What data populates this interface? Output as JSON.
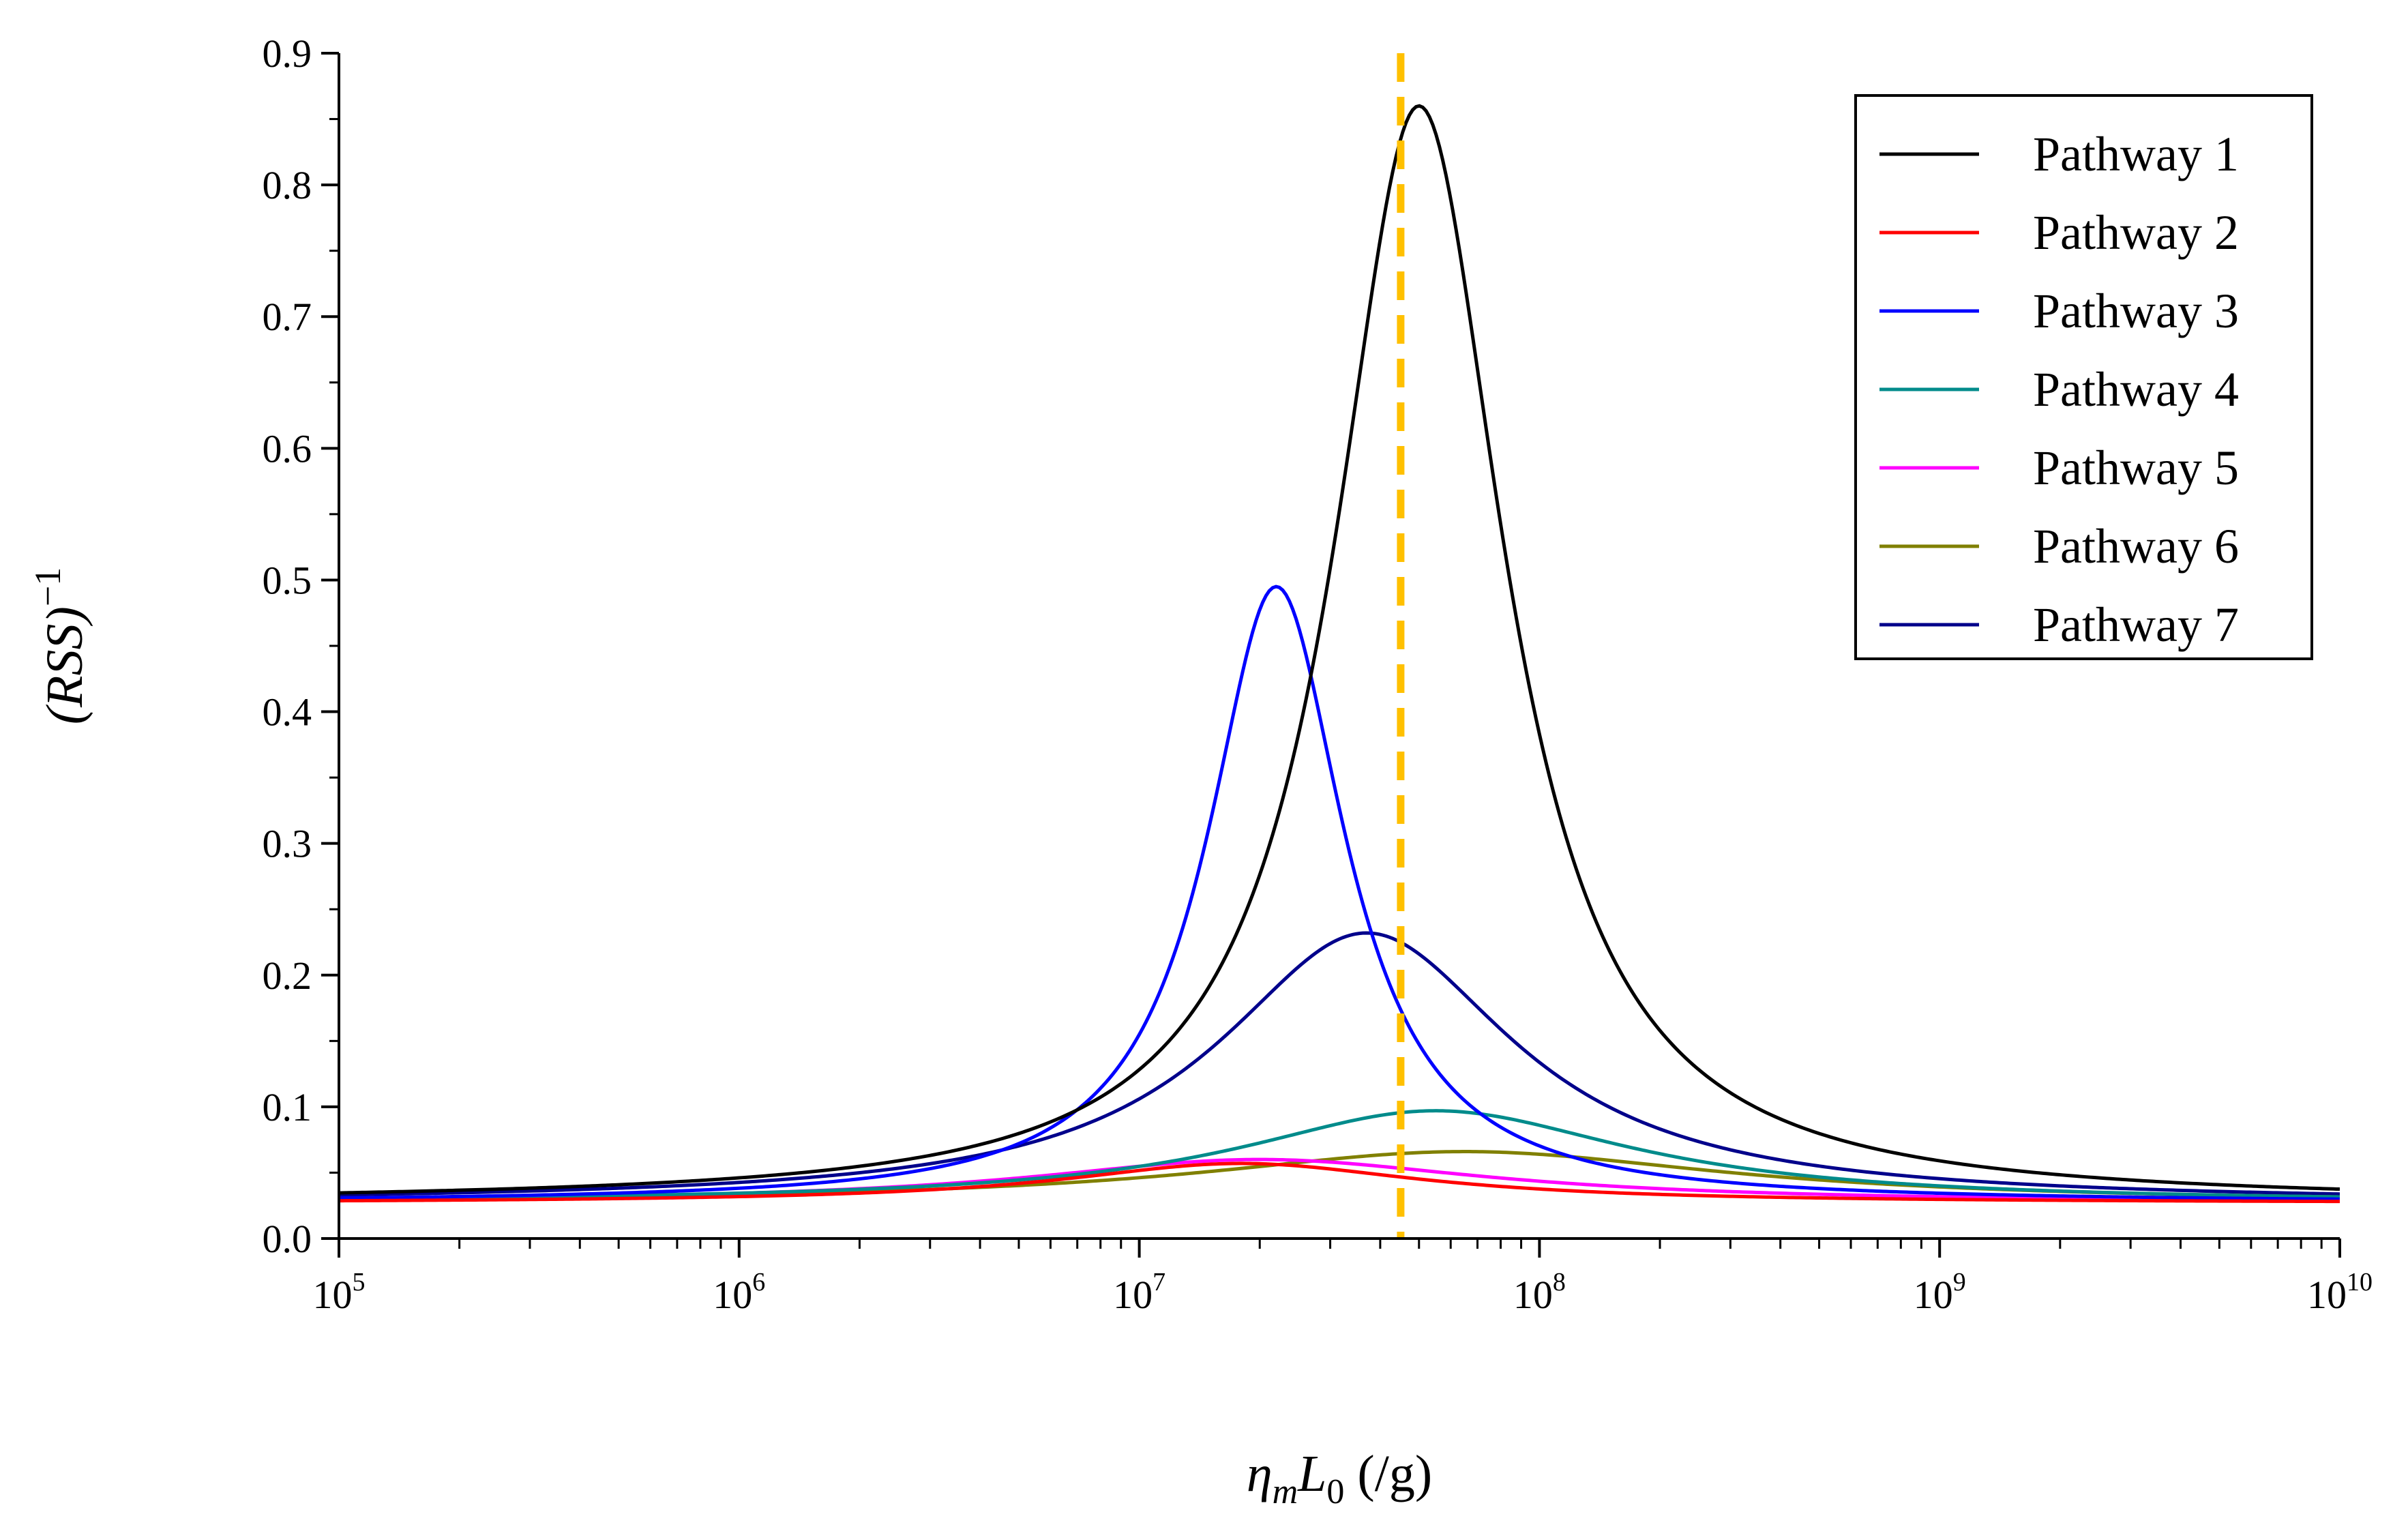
{
  "chart_data": {
    "type": "line",
    "title": "",
    "xlabel": "η_m L_0 (/g)",
    "xlabel_parts": {
      "var": "η",
      "sub1": "m",
      "var2": "L",
      "sub2": "0",
      "unit": " (/g)"
    },
    "ylabel": "(RSS)^-1",
    "ylabel_parts": {
      "base": "(RSS)",
      "exp": "−1"
    },
    "xscale": "log",
    "xlim": [
      100000,
      10000000000
    ],
    "ylim": [
      0.0,
      0.9
    ],
    "x_ticks": [
      {
        "base": "10",
        "exp": "5"
      },
      {
        "base": "10",
        "exp": "6"
      },
      {
        "base": "10",
        "exp": "7"
      },
      {
        "base": "10",
        "exp": "8"
      },
      {
        "base": "10",
        "exp": "9"
      },
      {
        "base": "10",
        "exp": "10"
      }
    ],
    "y_ticks": [
      "0.0",
      "0.1",
      "0.2",
      "0.3",
      "0.4",
      "0.5",
      "0.6",
      "0.7",
      "0.8",
      "0.9"
    ],
    "reference_line": {
      "x": 45000000,
      "color": "#FFC000",
      "style": "dashed"
    },
    "legend_position": "top-right",
    "grid": false,
    "series": [
      {
        "name": "Pathway 1",
        "color": "#000000",
        "baseline": 0.027,
        "peak_x": 50000000,
        "peak_y": 0.86,
        "width_decades": 0.26,
        "shape": "lorentzian"
      },
      {
        "name": "Pathway 2",
        "color": "#FF0000",
        "baseline": 0.027,
        "peak_x": 18000000,
        "peak_y": 0.057,
        "width_decades": 0.55,
        "shape": "lorentzian"
      },
      {
        "name": "Pathway 3",
        "color": "#0000FF",
        "baseline": 0.027,
        "peak_x": 22000000,
        "peak_y": 0.495,
        "width_decades": 0.21,
        "shape": "lorentzian"
      },
      {
        "name": "Pathway 4",
        "color": "#008B8B",
        "baseline": 0.027,
        "peak_x": 55000000,
        "peak_y": 0.097,
        "width_decades": 0.6,
        "shape": "lorentzian"
      },
      {
        "name": "Pathway 5",
        "color": "#FF00FF",
        "baseline": 0.027,
        "peak_x": 20000000,
        "peak_y": 0.06,
        "width_decades": 0.7,
        "shape": "lorentzian"
      },
      {
        "name": "Pathway 6",
        "color": "#808000",
        "baseline": 0.027,
        "peak_x": 65000000,
        "peak_y": 0.066,
        "width_decades": 0.8,
        "shape": "lorentzian"
      },
      {
        "name": "Pathway 7",
        "color": "#00008B",
        "baseline": 0.027,
        "peak_x": 37000000,
        "peak_y": 0.232,
        "width_decades": 0.45,
        "shape": "lorentzian"
      }
    ]
  }
}
